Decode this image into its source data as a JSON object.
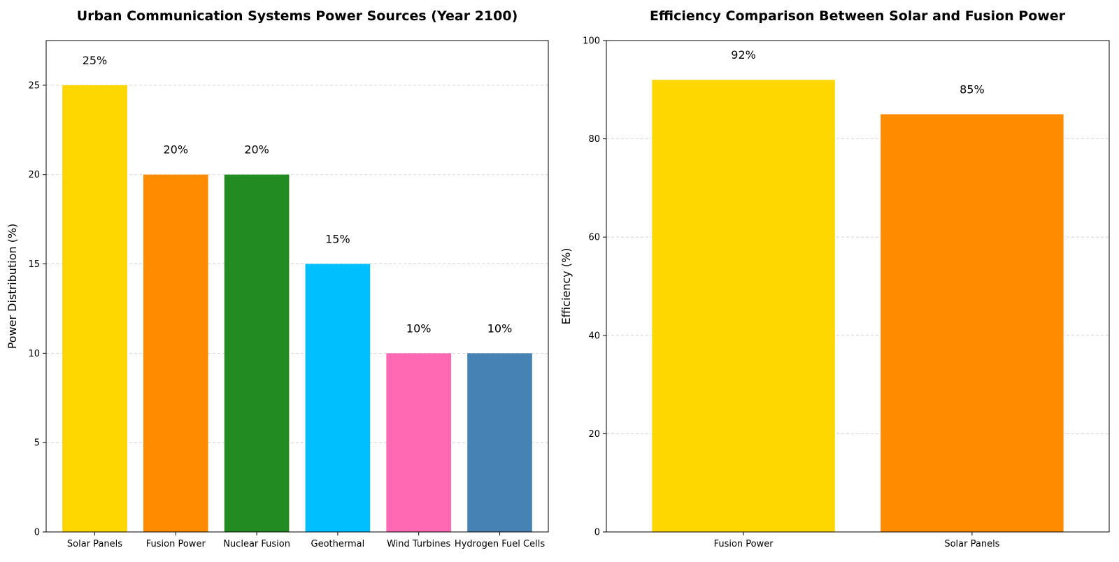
{
  "chart_data": [
    {
      "type": "bar",
      "title": "Urban Communication Systems Power Sources (Year 2100)",
      "xlabel": "",
      "ylabel": "Power Distribution (%)",
      "categories": [
        "Solar Panels",
        "Fusion Power",
        "Nuclear Fusion",
        "Geothermal",
        "Wind Turbines",
        "Hydrogen Fuel Cells"
      ],
      "values": [
        25,
        20,
        20,
        15,
        10,
        10
      ],
      "data_labels": [
        "25%",
        "20%",
        "20%",
        "15%",
        "10%",
        "10%"
      ],
      "colors": [
        "#FFD700",
        "#FF8C00",
        "#228B22",
        "#00BFFF",
        "#FF69B4",
        "#4682B4"
      ],
      "ylim": [
        0,
        27.5
      ],
      "yticks": [
        0,
        5,
        10,
        15,
        20,
        25
      ],
      "grid": "horizontal dashed",
      "legend": "none"
    },
    {
      "type": "bar",
      "title": "Efficiency Comparison Between Solar and Fusion Power",
      "xlabel": "",
      "ylabel": "Efficiency (%)",
      "categories": [
        "Fusion Power",
        "Solar Panels"
      ],
      "values": [
        92,
        85
      ],
      "data_labels": [
        "92%",
        "85%"
      ],
      "colors": [
        "#FFD700",
        "#FF8C00"
      ],
      "ylim": [
        0,
        100
      ],
      "yticks": [
        0,
        20,
        40,
        60,
        80,
        100
      ],
      "grid": "horizontal dashed",
      "legend": "none"
    }
  ]
}
